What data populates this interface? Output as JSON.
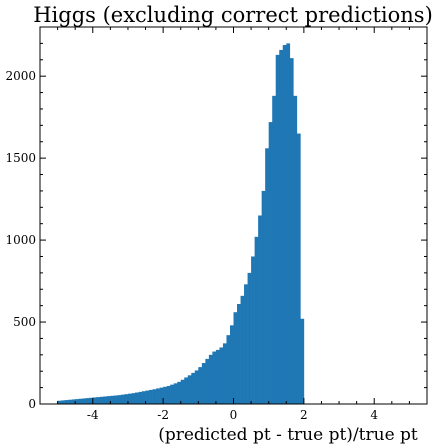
{
  "chart_data": {
    "type": "bar",
    "title": "Higgs (excluding correct predictions)",
    "xlabel": "(predicted pt - true pt)/true pt",
    "ylabel": "",
    "xlim": [
      -5.5,
      5.5
    ],
    "ylim": [
      0,
      2300
    ],
    "bin_width": 0.1,
    "x_ticks": [
      -4,
      -2,
      0,
      2,
      4
    ],
    "x_tick_labels": [
      "-4",
      "-2",
      "0",
      "2",
      "4"
    ],
    "y_ticks": [
      0,
      500,
      1000,
      1500,
      2000
    ],
    "y_tick_labels": [
      "0",
      "500",
      "1000",
      "1500",
      "2000"
    ],
    "grid": false,
    "bar_color": "#1f77b4",
    "bins_start": -5.0,
    "counts": [
      20,
      22,
      24,
      26,
      28,
      30,
      32,
      34,
      36,
      38,
      40,
      42,
      44,
      46,
      48,
      50,
      52,
      54,
      57,
      60,
      63,
      66,
      70,
      74,
      78,
      82,
      86,
      90,
      95,
      100,
      105,
      110,
      118,
      126,
      135,
      148,
      162,
      175,
      190,
      205,
      225,
      250,
      275,
      300,
      320,
      330,
      345,
      370,
      420,
      480,
      560,
      610,
      660,
      730,
      800,
      900,
      1020,
      1150,
      1300,
      1560,
      1720,
      1880,
      2130,
      2160,
      2190,
      2200,
      2110,
      1880,
      1650,
      520
    ]
  }
}
